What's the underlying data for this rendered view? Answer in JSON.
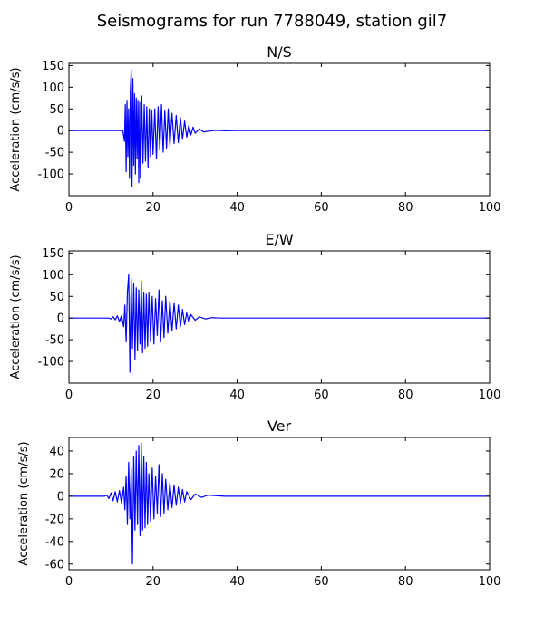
{
  "figure": {
    "title": "Seismograms for run 7788049, station gil7"
  },
  "chart_data": [
    {
      "type": "line",
      "title": "N/S",
      "xlabel": "",
      "ylabel": "Acceleration (cm/s/s)",
      "xlim": [
        0,
        100
      ],
      "ylim": [
        -150,
        155
      ],
      "xticks": [
        0,
        20,
        40,
        60,
        80,
        100
      ],
      "yticks": [
        -100,
        -50,
        0,
        50,
        100,
        150
      ],
      "color": "#0000ff",
      "grid": false,
      "series": [
        {
          "x": [
            0,
            12.8,
            13.2,
            13.4,
            13.6,
            13.8,
            14.0,
            14.2,
            14.4,
            14.6,
            14.8,
            15.0,
            15.2,
            15.4,
            15.6,
            15.8,
            16.0,
            16.2,
            16.4,
            16.6,
            16.8,
            17.0,
            17.3,
            17.6,
            17.9,
            18.2,
            18.5,
            18.8,
            19.1,
            19.4,
            19.7,
            20.0,
            20.4,
            20.8,
            21.2,
            21.6,
            22.0,
            22.4,
            22.8,
            23.2,
            23.6,
            24.0,
            24.5,
            25.0,
            25.5,
            26.0,
            26.5,
            27.0,
            27.5,
            28.0,
            28.5,
            29.0,
            29.5,
            30.0,
            31.0,
            32.0,
            33.5,
            35.0,
            37.0,
            40.0,
            100
          ],
          "y": [
            0,
            0,
            -25,
            60,
            -95,
            70,
            -60,
            50,
            -110,
            90,
            140,
            -130,
            120,
            -80,
            85,
            -100,
            75,
            -65,
            70,
            -120,
            65,
            -110,
            80,
            -75,
            60,
            -70,
            55,
            -85,
            50,
            -60,
            45,
            -55,
            50,
            -65,
            55,
            -45,
            60,
            -50,
            45,
            -40,
            50,
            -35,
            40,
            -30,
            35,
            -28,
            30,
            -20,
            22,
            -15,
            12,
            -10,
            8,
            -6,
            4,
            -3,
            -1,
            0.5,
            -0.3,
            0,
            0
          ]
        }
      ]
    },
    {
      "type": "line",
      "title": "E/W",
      "xlabel": "",
      "ylabel": "Acceleration (cm/s/s)",
      "xlim": [
        0,
        100
      ],
      "ylim": [
        -150,
        155
      ],
      "xticks": [
        0,
        20,
        40,
        60,
        80,
        100
      ],
      "yticks": [
        -100,
        -50,
        0,
        50,
        100,
        150
      ],
      "color": "#0000ff",
      "grid": false,
      "series": [
        {
          "x": [
            0,
            9.5,
            10.0,
            10.5,
            11.0,
            11.5,
            12.0,
            12.5,
            13.0,
            13.3,
            13.6,
            13.9,
            14.2,
            14.5,
            14.8,
            15.1,
            15.4,
            15.7,
            16.0,
            16.3,
            16.6,
            16.9,
            17.2,
            17.5,
            17.8,
            18.1,
            18.4,
            18.7,
            19.0,
            19.4,
            19.8,
            20.2,
            20.6,
            21.0,
            21.4,
            21.8,
            22.2,
            22.6,
            23.0,
            23.5,
            24.0,
            24.5,
            25.0,
            25.5,
            26.0,
            26.5,
            27.0,
            27.5,
            28.0,
            28.5,
            29.0,
            30.0,
            31.0,
            32.5,
            34.0,
            36.0,
            100
          ],
          "y": [
            0,
            0,
            -2,
            3,
            -4,
            5,
            -8,
            6,
            -20,
            30,
            -55,
            60,
            100,
            -125,
            90,
            -70,
            80,
            -95,
            70,
            -75,
            65,
            -60,
            85,
            -80,
            60,
            -70,
            55,
            -65,
            60,
            -55,
            50,
            -60,
            45,
            -40,
            65,
            -55,
            40,
            -45,
            50,
            -35,
            40,
            -30,
            35,
            -25,
            30,
            -20,
            20,
            -15,
            12,
            -10,
            8,
            -5,
            3,
            -2,
            1,
            0,
            0
          ]
        }
      ]
    },
    {
      "type": "line",
      "title": "Ver",
      "xlabel": "",
      "ylabel": "Acceleration (cm/s/s)",
      "xlim": [
        0,
        100
      ],
      "ylim": [
        -65,
        52
      ],
      "xticks": [
        0,
        20,
        40,
        60,
        80,
        100
      ],
      "yticks": [
        -60,
        -40,
        -20,
        0,
        20,
        40
      ],
      "color": "#0000ff",
      "grid": false,
      "series": [
        {
          "x": [
            0,
            8.5,
            9.0,
            9.5,
            10.0,
            10.5,
            11.0,
            11.5,
            12.0,
            12.5,
            13.0,
            13.3,
            13.6,
            13.9,
            14.2,
            14.5,
            14.8,
            15.1,
            15.4,
            15.7,
            16.0,
            16.3,
            16.6,
            16.9,
            17.2,
            17.5,
            17.8,
            18.1,
            18.4,
            18.7,
            19.0,
            19.4,
            19.8,
            20.2,
            20.6,
            21.0,
            21.4,
            21.8,
            22.2,
            22.6,
            23.0,
            23.5,
            24.0,
            24.5,
            25.0,
            25.5,
            26.0,
            26.5,
            27.0,
            27.5,
            28.0,
            29.0,
            30.0,
            31.5,
            33.0,
            35.0,
            37.0,
            100
          ],
          "y": [
            0,
            0,
            1,
            -2,
            3,
            -4,
            4,
            -5,
            5,
            -6,
            8,
            -12,
            18,
            -25,
            30,
            -20,
            25,
            -60,
            35,
            -30,
            40,
            -25,
            45,
            -35,
            47,
            -30,
            35,
            -28,
            30,
            -25,
            20,
            -22,
            25,
            -20,
            18,
            -15,
            28,
            -18,
            20,
            -15,
            15,
            -12,
            12,
            -10,
            10,
            -8,
            8,
            -6,
            6,
            -5,
            4,
            -3,
            2,
            -1,
            1,
            0.5,
            0,
            0
          ]
        }
      ]
    }
  ]
}
